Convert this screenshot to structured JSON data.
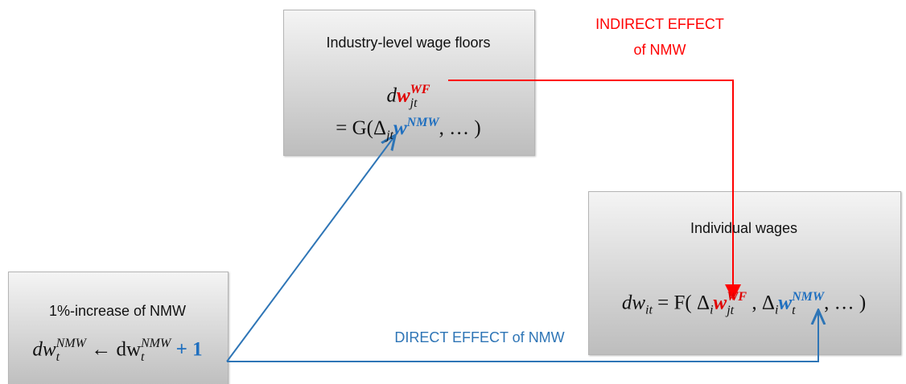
{
  "industry_node": {
    "title": "Industry-level wage floors",
    "formula_line1": [
      "d",
      "w",
      "WF",
      "jt"
    ],
    "formula_line2": [
      "= G(Δ",
      "jt",
      "w",
      "NMW",
      ", … )"
    ]
  },
  "individual_node": {
    "title": "Individual wages",
    "formula": [
      "dw",
      "it",
      "= F( Δ",
      "i",
      "w",
      "WF",
      "jt",
      " , Δ",
      "i",
      "w",
      "NMW",
      "t",
      ", … )"
    ]
  },
  "increase_node": {
    "title": "1%-increase of NMW",
    "formula": [
      "dw",
      "NMW",
      "t",
      "← dw",
      "NMW",
      "t",
      "+ 1"
    ]
  },
  "indirect_edge": {
    "label_line1": "INDIRECT EFFECT",
    "label_line2": "of NMW"
  },
  "direct_edge": {
    "label": "DIRECT EFFECT of NMW"
  }
}
